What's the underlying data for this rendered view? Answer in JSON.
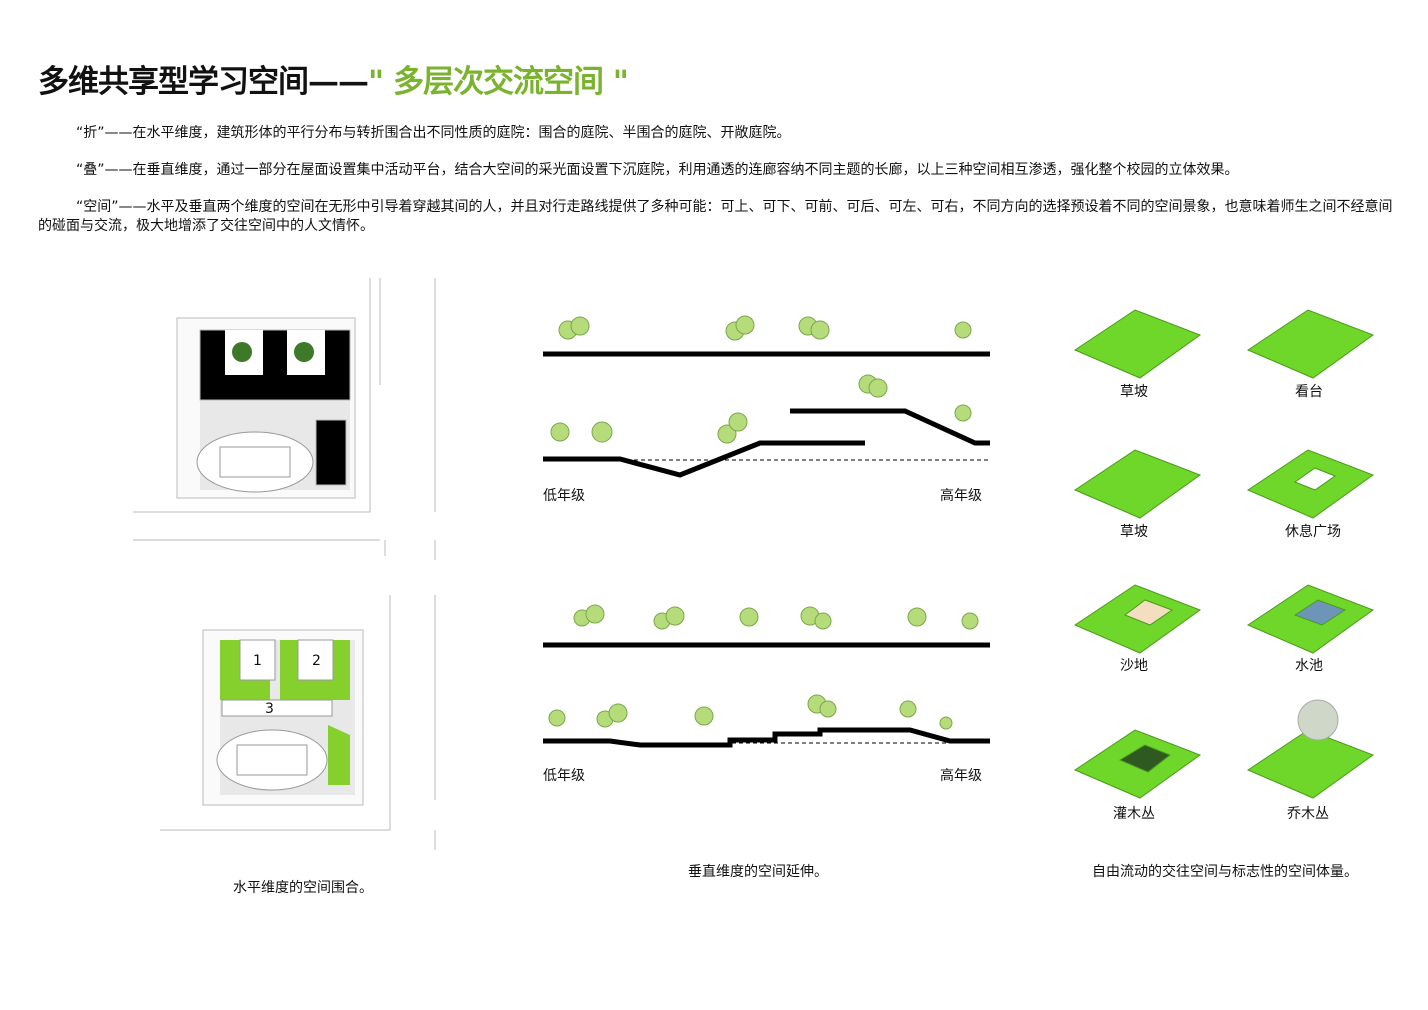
{
  "title": {
    "main": "多维共享型学习空间——",
    "highlight": "\" 多层次交流空间 \""
  },
  "paragraphs": [
    "“折”——在水平维度，建筑形体的平行分布与转折围合出不同性质的庭院：围合的庭院、半围合的庭院、开敞庭院。",
    "“叠”——在垂直维度，通过一部分在屋面设置集中活动平台，结合大空间的采光面设置下沉庭院，利用通透的连廊容纳不同主题的长廊，以上三种空间相互渗透，强化整个校园的立体效果。",
    "“空间”——水平及垂直两个维度的空间在无形中引导着穿越其间的人，并且对行走路线提供了多种可能：可上、可下、可前、可后、可左、可右，不同方向的选择预设着不同的空间景象，也意味着师生之间不经意间的碰面与交流，极大地增添了交往空间中的人文情怀。"
  ],
  "plan": {
    "block_labels": [
      "1",
      "2",
      "3"
    ],
    "caption": "水平维度的空间围合。"
  },
  "sections": {
    "low_label": "低年级",
    "high_label": "高年级",
    "caption": "垂直维度的空间延伸。"
  },
  "spaces": {
    "items": [
      "草坡",
      "看台",
      "草坡",
      "休息广场",
      "沙地",
      "水池",
      "灌木丛",
      "乔木丛"
    ],
    "caption": "自由流动的交往空间与标志性的空间体量。"
  },
  "colors": {
    "accent": "#7ab32e",
    "grass": "#6fd62a",
    "tree": "#b5db7a"
  }
}
